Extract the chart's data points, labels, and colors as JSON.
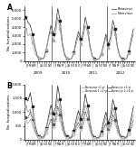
{
  "months_per_year": 12,
  "n_years": 4,
  "years": [
    "2009",
    "2010",
    "2011",
    "2012"
  ],
  "month_labels": [
    "J",
    "F",
    "M",
    "A",
    "M",
    "J",
    "J",
    "A",
    "S",
    "O",
    "N",
    "D"
  ],
  "panel_A": {
    "ylabel": "No. hospitalizations",
    "ylim": [
      0,
      6500
    ],
    "yticks": [
      0,
      1000,
      2000,
      3000,
      4000,
      5000,
      6000
    ],
    "rotavirus": [
      5200,
      4600,
      4200,
      3200,
      1800,
      700,
      350,
      280,
      380,
      1300,
      2800,
      4200,
      3200,
      4000,
      6200,
      4800,
      2200,
      800,
      350,
      200,
      300,
      1000,
      2400,
      3500,
      2600,
      3200,
      5200,
      4000,
      1900,
      650,
      300,
      200,
      280,
      850,
      2000,
      3200,
      2000,
      2800,
      4800,
      3800,
      1700,
      650,
      300,
      200,
      320,
      1100,
      2600,
      3800
    ],
    "norovirus": [
      3800,
      3000,
      3200,
      2200,
      1100,
      500,
      250,
      220,
      350,
      1400,
      2800,
      3500,
      2400,
      3200,
      5200,
      3800,
      1800,
      620,
      280,
      180,
      280,
      950,
      2000,
      3000,
      2000,
      2800,
      4200,
      3400,
      1600,
      550,
      240,
      180,
      260,
      800,
      1800,
      2800,
      1600,
      2200,
      4000,
      3200,
      1500,
      550,
      240,
      180,
      280,
      950,
      2200,
      3200
    ],
    "legend": [
      "Rotavirus",
      "Norovirus"
    ]
  },
  "panel_B": {
    "ylabel": "No. hospitalizations",
    "ylim": [
      0,
      2000
    ],
    "yticks": [
      0,
      500,
      1000,
      1500,
      2000
    ],
    "rotavirus_1yr": [
      1500,
      1400,
      1700,
      1200,
      580,
      240,
      110,
      90,
      120,
      420,
      850,
      1250,
      950,
      1150,
      1950,
      1450,
      700,
      270,
      110,
      70,
      100,
      330,
      720,
      1050,
      750,
      1000,
      1650,
      1250,
      640,
      210,
      100,
      70,
      95,
      290,
      680,
      1000,
      620,
      850,
      1450,
      1150,
      570,
      210,
      100,
      70,
      100,
      360,
      780,
      1200
    ],
    "rotavirus_2yr": [
      820,
      780,
      1000,
      730,
      350,
      145,
      65,
      55,
      75,
      250,
      490,
      750,
      560,
      680,
      1200,
      900,
      440,
      165,
      70,
      45,
      65,
      200,
      440,
      630,
      440,
      600,
      1020,
      760,
      410,
      135,
      65,
      45,
      58,
      175,
      400,
      590,
      360,
      500,
      890,
      700,
      360,
      135,
      65,
      45,
      65,
      220,
      470,
      720
    ],
    "norovirus_1yr": [
      1200,
      1000,
      1100,
      800,
      380,
      170,
      80,
      70,
      110,
      400,
      750,
      1000,
      720,
      900,
      1500,
      1100,
      520,
      175,
      70,
      52,
      85,
      270,
      540,
      840,
      560,
      780,
      1250,
      1000,
      510,
      155,
      72,
      52,
      80,
      235,
      540,
      820,
      470,
      630,
      1150,
      900,
      420,
      160,
      72,
      52,
      85,
      270,
      630,
      900
    ],
    "norovirus_2yr": [
      680,
      580,
      750,
      540,
      260,
      115,
      52,
      48,
      72,
      260,
      490,
      640,
      460,
      560,
      960,
      720,
      340,
      120,
      52,
      38,
      56,
      175,
      340,
      530,
      350,
      490,
      800,
      640,
      340,
      108,
      50,
      38,
      52,
      155,
      340,
      510,
      290,
      390,
      720,
      580,
      280,
      108,
      50,
      38,
      56,
      175,
      390,
      570
    ],
    "legend_rota1": "Rotavirus <1 yr",
    "legend_rota2": "Rotavirus 1-<2 yr",
    "legend_noro1": "Norovirus <1 yr",
    "legend_noro2": "Norovirus 1-<2 yr"
  }
}
